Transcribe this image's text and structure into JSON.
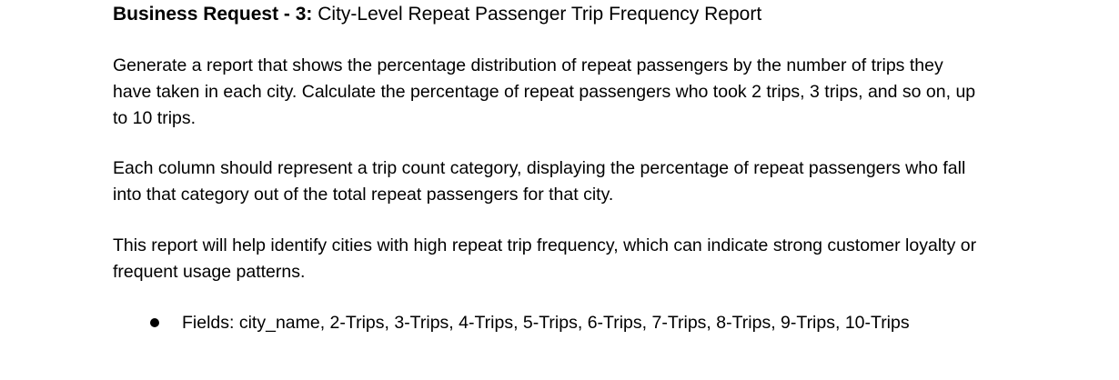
{
  "heading": {
    "label": "Business Request - 3:",
    "title": "City-Level Repeat Passenger Trip Frequency Report"
  },
  "paragraphs": [
    "Generate a report that shows the percentage distribution of repeat passengers by the number of trips they have taken in each city. Calculate the percentage of repeat passengers who took 2 trips, 3 trips, and so on, up to 10 trips.",
    "Each column should represent a trip count category, displaying the percentage of repeat passengers who fall into that category out of the total repeat passengers for that city.",
    "This report will help identify cities with high repeat trip frequency, which can indicate strong customer loyalty or frequent usage patterns."
  ],
  "bullets": [
    "Fields: city_name, 2-Trips, 3-Trips, 4-Trips, 5-Trips, 6-Trips, 7-Trips, 8-Trips, 9-Trips, 10-Trips"
  ]
}
